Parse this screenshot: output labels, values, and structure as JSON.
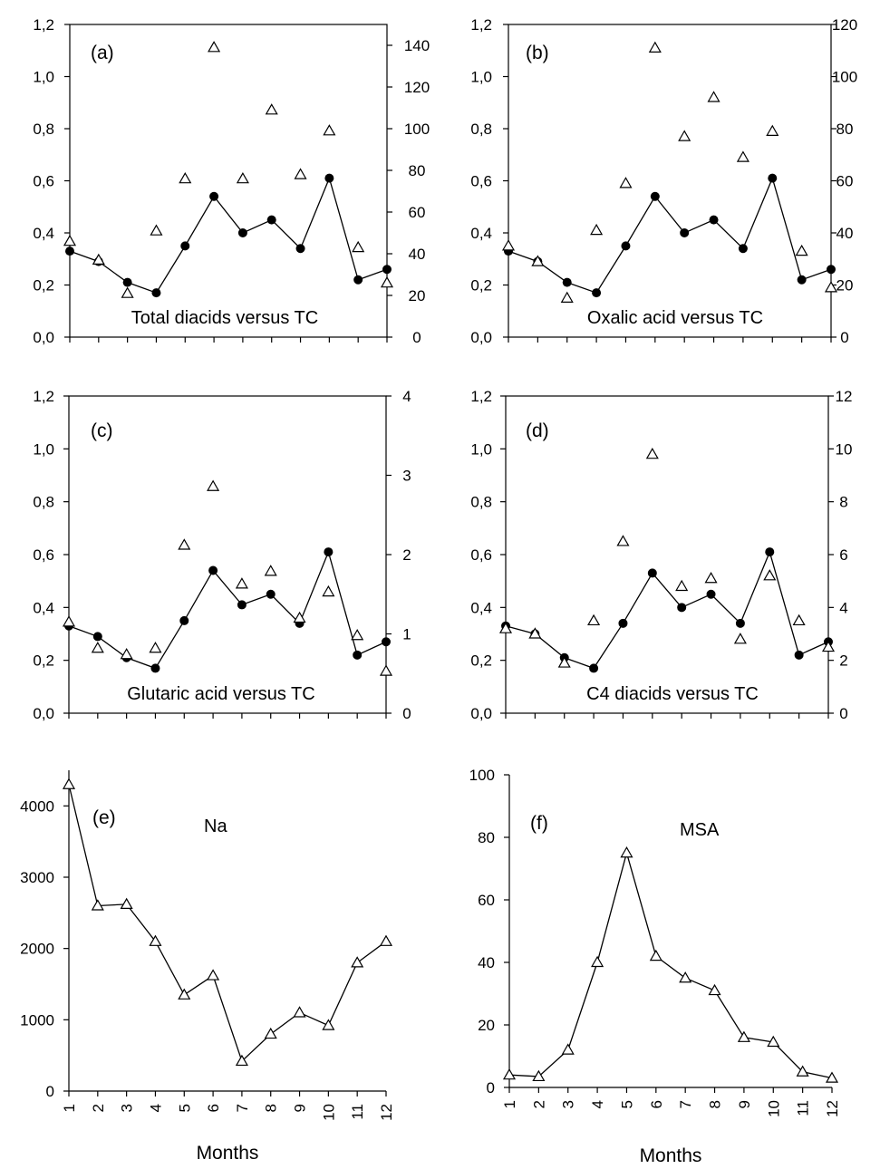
{
  "chart_data": [
    {
      "type": "scatter",
      "panel": "(a)",
      "caption": "Total diacids versus TC",
      "x": [
        1,
        2,
        3,
        4,
        5,
        6,
        7,
        8,
        9,
        10,
        11,
        12
      ],
      "xticks": [
        "",
        "",
        "",
        "",
        "",
        "",
        "",
        "",
        "",
        "",
        "",
        ""
      ],
      "left_axis": {
        "ylim": [
          0,
          1.2
        ],
        "ticks": [
          "0,0",
          "0,2",
          "0,4",
          "0,6",
          "0,8",
          "1,0",
          "1,2"
        ]
      },
      "right_axis": {
        "ylim": [
          0,
          150
        ],
        "ticks": [
          "0",
          "20",
          "40",
          "60",
          "80",
          "100",
          "120",
          "140"
        ]
      },
      "series": [
        {
          "marker": "filled-circle",
          "line": true,
          "axis": "left",
          "values": [
            0.33,
            0.29,
            0.21,
            0.17,
            0.35,
            0.54,
            0.4,
            0.45,
            0.34,
            0.61,
            0.22,
            0.26
          ]
        },
        {
          "marker": "open-triangle",
          "line": false,
          "axis": "right",
          "values": [
            46,
            37,
            21,
            51,
            76,
            139,
            76,
            109,
            78,
            99,
            43,
            26
          ]
        }
      ]
    },
    {
      "type": "scatter",
      "panel": "(b)",
      "caption": "Oxalic acid versus TC",
      "x": [
        1,
        2,
        3,
        4,
        5,
        6,
        7,
        8,
        9,
        10,
        11,
        12
      ],
      "xticks": [
        "",
        "",
        "",
        "",
        "",
        "",
        "",
        "",
        "",
        "",
        "",
        ""
      ],
      "left_axis": {
        "ylim": [
          0,
          1.2
        ],
        "ticks": [
          "0,0",
          "0,2",
          "0,4",
          "0,6",
          "0,8",
          "1,0",
          "1,2"
        ]
      },
      "right_axis": {
        "ylim": [
          0,
          120
        ],
        "ticks": [
          "0",
          "20",
          "40",
          "60",
          "80",
          "100",
          "120"
        ]
      },
      "series": [
        {
          "marker": "filled-circle",
          "line": true,
          "axis": "left",
          "values": [
            0.33,
            0.29,
            0.21,
            0.17,
            0.35,
            0.54,
            0.4,
            0.45,
            0.34,
            0.61,
            0.22,
            0.26
          ]
        },
        {
          "marker": "open-triangle",
          "line": false,
          "axis": "right",
          "values": [
            35,
            29,
            15,
            41,
            59,
            111,
            77,
            92,
            69,
            79,
            33,
            19
          ]
        }
      ]
    },
    {
      "type": "scatter",
      "panel": "(c)",
      "caption": "Glutaric acid versus TC",
      "x": [
        1,
        2,
        3,
        4,
        5,
        6,
        7,
        8,
        9,
        10,
        11,
        12
      ],
      "xticks": [
        "",
        "",
        "",
        "",
        "",
        "",
        "",
        "",
        "",
        "",
        "",
        ""
      ],
      "left_axis": {
        "ylim": [
          0,
          1.2
        ],
        "ticks": [
          "0,0",
          "0,2",
          "0,4",
          "0,6",
          "0,8",
          "1,0",
          "1,2"
        ]
      },
      "right_axis": {
        "ylim": [
          0,
          4
        ],
        "ticks": [
          "0",
          "1",
          "2",
          "3",
          "4"
        ]
      },
      "series": [
        {
          "marker": "filled-circle",
          "line": true,
          "axis": "left",
          "values": [
            0.33,
            0.29,
            0.21,
            0.17,
            0.35,
            0.54,
            0.41,
            0.45,
            0.34,
            0.61,
            0.22,
            0.27
          ]
        },
        {
          "marker": "open-triangle",
          "line": false,
          "axis": "right",
          "values": [
            1.15,
            0.82,
            0.74,
            0.82,
            2.12,
            2.86,
            1.63,
            1.79,
            1.2,
            1.53,
            0.98,
            0.53
          ]
        }
      ]
    },
    {
      "type": "scatter",
      "panel": "(d)",
      "caption": "C4 diacids versus TC",
      "x": [
        1,
        2,
        3,
        4,
        5,
        6,
        7,
        8,
        9,
        10,
        11,
        12
      ],
      "xticks": [
        "",
        "",
        "",
        "",
        "",
        "",
        "",
        "",
        "",
        "",
        "",
        ""
      ],
      "left_axis": {
        "ylim": [
          0,
          1.2
        ],
        "ticks": [
          "0,0",
          "0,2",
          "0,4",
          "0,6",
          "0,8",
          "1,0",
          "1,2"
        ]
      },
      "right_axis": {
        "ylim": [
          0,
          12
        ],
        "ticks": [
          "0",
          "2",
          "4",
          "6",
          "8",
          "10",
          "12"
        ]
      },
      "series": [
        {
          "marker": "filled-circle",
          "line": true,
          "axis": "left",
          "values": [
            0.33,
            0.3,
            0.21,
            0.17,
            0.34,
            0.53,
            0.4,
            0.45,
            0.34,
            0.61,
            0.22,
            0.27
          ]
        },
        {
          "marker": "open-triangle",
          "line": false,
          "axis": "right",
          "values": [
            3.2,
            3.0,
            1.9,
            3.5,
            6.5,
            9.8,
            4.8,
            5.1,
            2.8,
            5.2,
            3.5,
            2.5
          ]
        }
      ]
    },
    {
      "type": "line",
      "panel": "(e)",
      "caption": "Na",
      "xlabel": "Months",
      "x": [
        1,
        2,
        3,
        4,
        5,
        6,
        7,
        8,
        9,
        10,
        11,
        12
      ],
      "xticks": [
        "1",
        "2",
        "3",
        "4",
        "5",
        "6",
        "7",
        "8",
        "9",
        "10",
        "11",
        "12"
      ],
      "left_axis": {
        "ylim": [
          0,
          4500
        ],
        "ticks": [
          "0",
          "1000",
          "2000",
          "3000",
          "4000"
        ]
      },
      "series": [
        {
          "marker": "open-triangle",
          "line": true,
          "axis": "left",
          "values": [
            4300,
            2600,
            2620,
            2100,
            1350,
            1620,
            420,
            800,
            1100,
            920,
            1800,
            2100
          ]
        }
      ]
    },
    {
      "type": "line",
      "panel": "(f)",
      "caption": "MSA",
      "xlabel": "Months",
      "x": [
        1,
        2,
        3,
        4,
        5,
        6,
        7,
        8,
        9,
        10,
        11,
        12
      ],
      "xticks": [
        "1",
        "2",
        "3",
        "4",
        "5",
        "6",
        "7",
        "8",
        "9",
        "10",
        "11",
        "12"
      ],
      "left_axis": {
        "ylim": [
          0,
          100
        ],
        "ticks": [
          "0",
          "20",
          "40",
          "60",
          "80",
          "100"
        ]
      },
      "series": [
        {
          "marker": "open-triangle",
          "line": true,
          "axis": "left",
          "values": [
            4,
            3.5,
            12,
            40,
            75,
            42,
            35,
            31,
            16,
            14.5,
            5,
            3
          ]
        }
      ]
    }
  ]
}
